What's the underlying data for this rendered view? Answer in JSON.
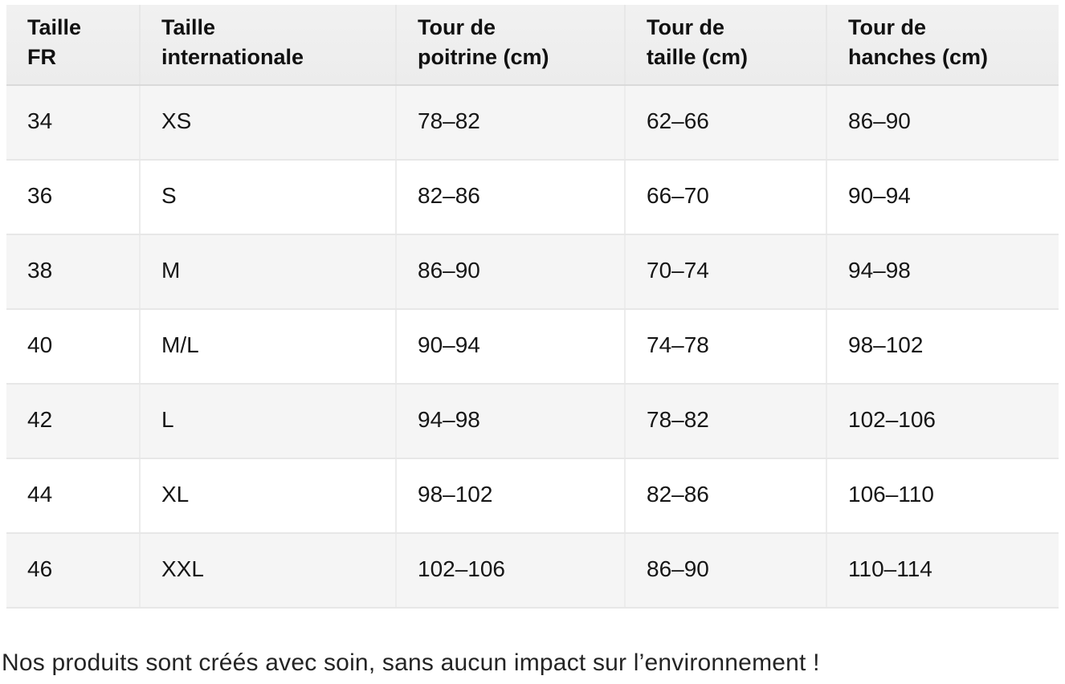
{
  "table": {
    "columns": [
      {
        "key": "fr",
        "label": "Taille\nFR"
      },
      {
        "key": "intl",
        "label": "Taille\ninternationale"
      },
      {
        "key": "poitrine",
        "label": "Tour de\npoitrine (cm)"
      },
      {
        "key": "taille",
        "label": "Tour de\ntaille (cm)"
      },
      {
        "key": "hanches",
        "label": "Tour de\nhanches (cm)"
      }
    ],
    "rows": [
      [
        "34",
        "XS",
        "78–82",
        "62–66",
        "86–90"
      ],
      [
        "36",
        "S",
        "82–86",
        "66–70",
        "90–94"
      ],
      [
        "38",
        "M",
        "86–90",
        "70–74",
        "94–98"
      ],
      [
        "40",
        "M/L",
        "90–94",
        "74–78",
        "98–102"
      ],
      [
        "42",
        "L",
        "94–98",
        "78–82",
        "102–106"
      ],
      [
        "44",
        "XL",
        "98–102",
        "82–86",
        "106–110"
      ],
      [
        "46",
        "XXL",
        "102–106",
        "86–90",
        "110–114"
      ]
    ]
  },
  "footer": {
    "note": "Nos produits sont créés avec soin, sans aucun impact sur l’environnement !"
  },
  "colors": {
    "header_background": "#eeeeee",
    "header_border_bottom": "#d9d9d9",
    "row_alt_background": "#f5f5f5",
    "row_background": "#ffffff",
    "grid_border": "#e9e9e9",
    "text": "#141414"
  }
}
